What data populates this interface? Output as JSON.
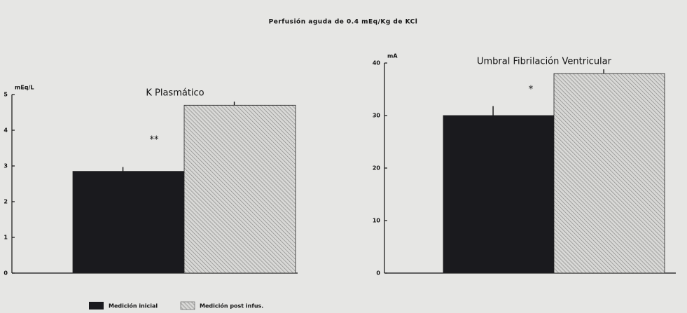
{
  "title": "Perfusión aguda de 0.4 mEq/Kg de KCl",
  "chart_data": [
    {
      "type": "bar",
      "title": "K Plasmático",
      "y_label": "mEq/L",
      "annotation": "**",
      "ylim": [
        0,
        5
      ],
      "yticks": [
        0,
        1,
        2,
        3,
        4,
        5
      ],
      "series": [
        {
          "name": "Medición inicial",
          "color": "#1a1a1e",
          "values": [
            2.85
          ],
          "errors": [
            0.12
          ]
        },
        {
          "name": "Medición post infus.",
          "color": "hatch",
          "values": [
            4.7
          ],
          "errors": [
            0.1
          ]
        }
      ]
    },
    {
      "type": "bar",
      "title": "Umbral Fibrilación Ventricular",
      "y_label": "mA",
      "annotation": "*",
      "ylim": [
        0,
        40
      ],
      "yticks": [
        0,
        10,
        20,
        30,
        40
      ],
      "series": [
        {
          "name": "Medición inicial",
          "color": "#1a1a1e",
          "values": [
            30
          ],
          "errors": [
            1.8
          ]
        },
        {
          "name": "Medición post infus.",
          "color": "hatch",
          "values": [
            38
          ],
          "errors": [
            0.8
          ]
        }
      ]
    }
  ]
}
